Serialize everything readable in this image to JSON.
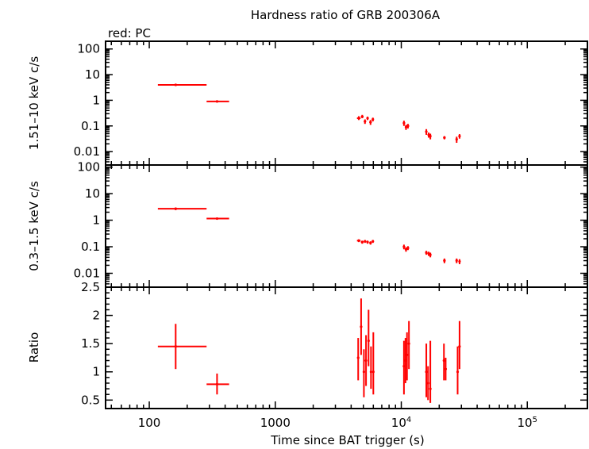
{
  "title": "Hardness ratio of GRB 200306A",
  "subtitle": "red: PC",
  "xlabel": "Time since BAT trigger (s)",
  "x_tick_labels": [
    {
      "value": 100,
      "text": "100"
    },
    {
      "value": 1000,
      "text": "1000"
    },
    {
      "value": 10000,
      "base": "10",
      "exp": "4"
    },
    {
      "value": 100000,
      "base": "10",
      "exp": "5"
    }
  ],
  "series_color": "#ff0000",
  "chart_data": [
    {
      "type": "scatter",
      "ylabel": "1.51–10 keV c/s",
      "yscale": "log",
      "ylim": [
        0.003,
        200
      ],
      "xscale": "log",
      "xlim": [
        45,
        300000
      ],
      "y_tick_labels": [
        "100",
        "10",
        "1",
        "0.1",
        "0.01"
      ],
      "y_tick_values": [
        100,
        10,
        1,
        0.1,
        0.01
      ],
      "points": [
        {
          "x": 162,
          "xlo": 117,
          "xhi": 285,
          "y": 4.0,
          "ylo": 3.6,
          "yhi": 4.4
        },
        {
          "x": 345,
          "xlo": 285,
          "xhi": 430,
          "y": 0.9,
          "ylo": 0.82,
          "yhi": 0.98
        },
        {
          "x": 4600,
          "xlo": 4450,
          "xhi": 4750,
          "y": 0.2,
          "ylo": 0.17,
          "yhi": 0.24
        },
        {
          "x": 4900,
          "xlo": 4780,
          "xhi": 5020,
          "y": 0.23,
          "ylo": 0.2,
          "yhi": 0.27
        },
        {
          "x": 5150,
          "xlo": 5050,
          "xhi": 5250,
          "y": 0.15,
          "ylo": 0.12,
          "yhi": 0.18
        },
        {
          "x": 5400,
          "xlo": 5300,
          "xhi": 5500,
          "y": 0.2,
          "ylo": 0.17,
          "yhi": 0.23
        },
        {
          "x": 5700,
          "xlo": 5580,
          "xhi": 5820,
          "y": 0.14,
          "ylo": 0.11,
          "yhi": 0.17
        },
        {
          "x": 5950,
          "xlo": 5850,
          "xhi": 6050,
          "y": 0.18,
          "ylo": 0.15,
          "yhi": 0.21
        },
        {
          "x": 10500,
          "xlo": 10300,
          "xhi": 10700,
          "y": 0.13,
          "ylo": 0.1,
          "yhi": 0.16
        },
        {
          "x": 10900,
          "xlo": 10750,
          "xhi": 11050,
          "y": 0.09,
          "ylo": 0.07,
          "yhi": 0.11
        },
        {
          "x": 11300,
          "xlo": 11150,
          "xhi": 11450,
          "y": 0.1,
          "ylo": 0.08,
          "yhi": 0.12
        },
        {
          "x": 15800,
          "xlo": 15600,
          "xhi": 16000,
          "y": 0.06,
          "ylo": 0.045,
          "yhi": 0.075
        },
        {
          "x": 16500,
          "xlo": 16300,
          "xhi": 16700,
          "y": 0.045,
          "ylo": 0.035,
          "yhi": 0.055
        },
        {
          "x": 17000,
          "xlo": 16800,
          "xhi": 17200,
          "y": 0.04,
          "ylo": 0.03,
          "yhi": 0.05
        },
        {
          "x": 22000,
          "xlo": 21500,
          "xhi": 22500,
          "y": 0.035,
          "ylo": 0.03,
          "yhi": 0.04
        },
        {
          "x": 27500,
          "xlo": 27000,
          "xhi": 28000,
          "y": 0.03,
          "ylo": 0.022,
          "yhi": 0.038
        },
        {
          "x": 29000,
          "xlo": 28500,
          "xhi": 29500,
          "y": 0.04,
          "ylo": 0.032,
          "yhi": 0.048
        }
      ]
    },
    {
      "type": "scatter",
      "ylabel": "0.3–1.5 keV c/s",
      "yscale": "log",
      "ylim": [
        0.003,
        120
      ],
      "xscale": "log",
      "xlim": [
        45,
        300000
      ],
      "y_tick_labels": [
        "100",
        "10",
        "1",
        "0.1",
        "0.01"
      ],
      "y_tick_values": [
        100,
        10,
        1,
        0.1,
        0.01
      ],
      "points": [
        {
          "x": 162,
          "xlo": 117,
          "xhi": 285,
          "y": 2.7,
          "ylo": 2.4,
          "yhi": 3.0
        },
        {
          "x": 345,
          "xlo": 285,
          "xhi": 430,
          "y": 1.15,
          "ylo": 1.05,
          "yhi": 1.25
        },
        {
          "x": 4600,
          "xlo": 4450,
          "xhi": 4750,
          "y": 0.17,
          "ylo": 0.15,
          "yhi": 0.19
        },
        {
          "x": 4900,
          "xlo": 4780,
          "xhi": 5020,
          "y": 0.15,
          "ylo": 0.13,
          "yhi": 0.17
        },
        {
          "x": 5150,
          "xlo": 5050,
          "xhi": 5250,
          "y": 0.16,
          "ylo": 0.14,
          "yhi": 0.18
        },
        {
          "x": 5400,
          "xlo": 5300,
          "xhi": 5500,
          "y": 0.15,
          "ylo": 0.13,
          "yhi": 0.17
        },
        {
          "x": 5700,
          "xlo": 5580,
          "xhi": 5820,
          "y": 0.14,
          "ylo": 0.12,
          "yhi": 0.16
        },
        {
          "x": 5950,
          "xlo": 5850,
          "xhi": 6050,
          "y": 0.16,
          "ylo": 0.14,
          "yhi": 0.18
        },
        {
          "x": 10500,
          "xlo": 10300,
          "xhi": 10700,
          "y": 0.1,
          "ylo": 0.08,
          "yhi": 0.12
        },
        {
          "x": 10900,
          "xlo": 10750,
          "xhi": 11050,
          "y": 0.08,
          "ylo": 0.065,
          "yhi": 0.095
        },
        {
          "x": 11300,
          "xlo": 11150,
          "xhi": 11450,
          "y": 0.09,
          "ylo": 0.075,
          "yhi": 0.105
        },
        {
          "x": 15800,
          "xlo": 15600,
          "xhi": 16000,
          "y": 0.06,
          "ylo": 0.05,
          "yhi": 0.07
        },
        {
          "x": 16500,
          "xlo": 16300,
          "xhi": 16700,
          "y": 0.055,
          "ylo": 0.045,
          "yhi": 0.065
        },
        {
          "x": 17000,
          "xlo": 16800,
          "xhi": 17200,
          "y": 0.05,
          "ylo": 0.04,
          "yhi": 0.06
        },
        {
          "x": 22000,
          "xlo": 21500,
          "xhi": 22500,
          "y": 0.03,
          "ylo": 0.024,
          "yhi": 0.036
        },
        {
          "x": 27500,
          "xlo": 27000,
          "xhi": 28000,
          "y": 0.03,
          "ylo": 0.024,
          "yhi": 0.036
        },
        {
          "x": 29000,
          "xlo": 28500,
          "xhi": 29500,
          "y": 0.028,
          "ylo": 0.022,
          "yhi": 0.034
        }
      ]
    },
    {
      "type": "scatter",
      "ylabel": "Ratio",
      "yscale": "linear",
      "ylim": [
        0.35,
        2.5
      ],
      "xscale": "log",
      "xlim": [
        45,
        300000
      ],
      "y_tick_labels": [
        "2.5",
        "2",
        "1.5",
        "1",
        "0.5"
      ],
      "y_tick_values": [
        2.5,
        2,
        1.5,
        1,
        0.5
      ],
      "points": [
        {
          "x": 162,
          "xlo": 117,
          "xhi": 285,
          "y": 1.45,
          "ylo": 1.05,
          "yhi": 1.85
        },
        {
          "x": 345,
          "xlo": 285,
          "xhi": 430,
          "y": 0.78,
          "ylo": 0.6,
          "yhi": 0.97
        },
        {
          "x": 4550,
          "xlo": 4480,
          "xhi": 4620,
          "y": 1.25,
          "ylo": 0.85,
          "yhi": 1.6
        },
        {
          "x": 4800,
          "xlo": 4740,
          "xhi": 4860,
          "y": 1.8,
          "ylo": 1.3,
          "yhi": 2.3
        },
        {
          "x": 5050,
          "xlo": 4990,
          "xhi": 5110,
          "y": 1.0,
          "ylo": 0.55,
          "yhi": 1.4
        },
        {
          "x": 5250,
          "xlo": 5190,
          "xhi": 5310,
          "y": 1.2,
          "ylo": 0.75,
          "yhi": 1.65
        },
        {
          "x": 5500,
          "xlo": 5440,
          "xhi": 5560,
          "y": 1.55,
          "ylo": 1.1,
          "yhi": 2.1
        },
        {
          "x": 5750,
          "xlo": 5690,
          "xhi": 5810,
          "y": 1.0,
          "ylo": 0.7,
          "yhi": 1.45
        },
        {
          "x": 6000,
          "xlo": 5940,
          "xhi": 6060,
          "y": 1.0,
          "ylo": 0.6,
          "yhi": 1.7
        },
        {
          "x": 10500,
          "xlo": 10400,
          "xhi": 10600,
          "y": 1.1,
          "ylo": 0.6,
          "yhi": 1.55
        },
        {
          "x": 10800,
          "xlo": 10700,
          "xhi": 10900,
          "y": 1.2,
          "ylo": 0.8,
          "yhi": 1.6
        },
        {
          "x": 11100,
          "xlo": 11000,
          "xhi": 11200,
          "y": 1.3,
          "ylo": 0.85,
          "yhi": 1.7
        },
        {
          "x": 11500,
          "xlo": 11400,
          "xhi": 11600,
          "y": 1.5,
          "ylo": 1.05,
          "yhi": 1.9
        },
        {
          "x": 15800,
          "xlo": 15650,
          "xhi": 15950,
          "y": 1.0,
          "ylo": 0.55,
          "yhi": 1.5
        },
        {
          "x": 16300,
          "xlo": 16150,
          "xhi": 16450,
          "y": 0.8,
          "ylo": 0.5,
          "yhi": 1.1
        },
        {
          "x": 17000,
          "xlo": 16850,
          "xhi": 17150,
          "y": 0.7,
          "ylo": 0.45,
          "yhi": 1.55
        },
        {
          "x": 21800,
          "xlo": 21500,
          "xhi": 22100,
          "y": 1.2,
          "ylo": 0.85,
          "yhi": 1.5
        },
        {
          "x": 22500,
          "xlo": 22200,
          "xhi": 22800,
          "y": 1.05,
          "ylo": 0.85,
          "yhi": 1.25
        },
        {
          "x": 28000,
          "xlo": 27600,
          "xhi": 28400,
          "y": 1.0,
          "ylo": 0.6,
          "yhi": 1.45
        },
        {
          "x": 29000,
          "xlo": 28600,
          "xhi": 29400,
          "y": 1.45,
          "ylo": 1.05,
          "yhi": 1.9
        }
      ]
    }
  ]
}
